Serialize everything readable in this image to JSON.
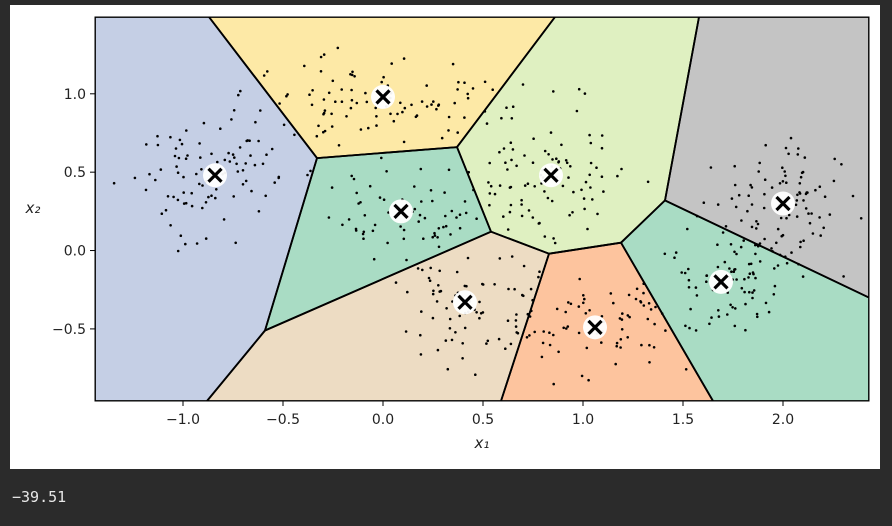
{
  "output_text": "−39.51",
  "colors": {
    "page_background": "#2b2b2b",
    "output_text": "#e8e8e8",
    "region_fills": [
      "#c5cfe5",
      "#fde9a6",
      "#a9dcc4",
      "#dff0c1",
      "#c4c4c4",
      "#eddcc3",
      "#fdc49e",
      "#a9dcc4"
    ],
    "centroid_marker": "#000000",
    "centroid_halo": "#ffffff",
    "boundary": "#000000",
    "points": "#000000"
  },
  "chart_data": {
    "type": "scatter",
    "title": "",
    "xlabel": "x₁",
    "ylabel": "x₂",
    "xlim": [
      -1.44,
      2.43
    ],
    "ylim": [
      -0.96,
      1.49
    ],
    "xticks": [
      -1.0,
      -0.5,
      0.0,
      0.5,
      1.0,
      1.5,
      2.0
    ],
    "xtick_labels": [
      "−1.0",
      "−0.5",
      "0.0",
      "0.5",
      "1.0",
      "1.5",
      "2.0"
    ],
    "yticks": [
      -0.5,
      0.0,
      0.5,
      1.0
    ],
    "ytick_labels": [
      "−0.5",
      "0.0",
      "0.5",
      "1.0"
    ],
    "grid": false,
    "legend": "none",
    "centroids": [
      {
        "x": -0.84,
        "y": 0.48
      },
      {
        "x": 0.0,
        "y": 0.98
      },
      {
        "x": 0.09,
        "y": 0.25
      },
      {
        "x": 0.84,
        "y": 0.48
      },
      {
        "x": 2.0,
        "y": 0.3
      },
      {
        "x": 0.41,
        "y": -0.33
      },
      {
        "x": 1.06,
        "y": -0.49
      },
      {
        "x": 1.69,
        "y": -0.2
      }
    ],
    "regions": [
      {
        "color_index": 0,
        "polygon": [
          [
            -1.44,
            1.49
          ],
          [
            -0.87,
            1.49
          ],
          [
            -0.33,
            0.59
          ],
          [
            -0.59,
            -0.51
          ],
          [
            -0.88,
            -0.96
          ],
          [
            -1.44,
            -0.96
          ]
        ]
      },
      {
        "color_index": 1,
        "polygon": [
          [
            -0.87,
            1.49
          ],
          [
            0.86,
            1.49
          ],
          [
            0.37,
            0.66
          ],
          [
            -0.33,
            0.59
          ]
        ]
      },
      {
        "color_index": 2,
        "polygon": [
          [
            -0.33,
            0.59
          ],
          [
            0.37,
            0.66
          ],
          [
            0.54,
            0.12
          ],
          [
            -0.59,
            -0.51
          ]
        ]
      },
      {
        "color_index": 3,
        "polygon": [
          [
            0.86,
            1.49
          ],
          [
            1.58,
            1.49
          ],
          [
            1.41,
            0.32
          ],
          [
            1.19,
            0.05
          ],
          [
            0.83,
            -0.02
          ],
          [
            0.54,
            0.12
          ],
          [
            0.37,
            0.66
          ]
        ]
      },
      {
        "color_index": 4,
        "polygon": [
          [
            1.58,
            1.49
          ],
          [
            2.43,
            1.49
          ],
          [
            2.43,
            -0.3
          ],
          [
            1.41,
            0.32
          ]
        ]
      },
      {
        "color_index": 5,
        "polygon": [
          [
            -0.59,
            -0.51
          ],
          [
            0.54,
            0.12
          ],
          [
            0.83,
            -0.02
          ],
          [
            0.59,
            -0.96
          ],
          [
            -0.88,
            -0.96
          ]
        ]
      },
      {
        "color_index": 6,
        "polygon": [
          [
            0.83,
            -0.02
          ],
          [
            1.19,
            0.05
          ],
          [
            1.65,
            -0.96
          ],
          [
            0.59,
            -0.96
          ]
        ]
      },
      {
        "color_index": 7,
        "polygon": [
          [
            1.41,
            0.32
          ],
          [
            2.43,
            -0.3
          ],
          [
            2.43,
            -0.96
          ],
          [
            1.65,
            -0.96
          ],
          [
            1.19,
            0.05
          ]
        ]
      }
    ],
    "point_clusters": [
      {
        "cx": -0.84,
        "cy": 0.48,
        "sx": 0.2,
        "sy": 0.2,
        "n": 95,
        "seed": 11
      },
      {
        "cx": 0.0,
        "cy": 0.98,
        "sx": 0.28,
        "sy": 0.13,
        "n": 95,
        "seed": 23
      },
      {
        "cx": 0.09,
        "cy": 0.25,
        "sx": 0.17,
        "sy": 0.14,
        "n": 60,
        "seed": 37
      },
      {
        "cx": 0.84,
        "cy": 0.48,
        "sx": 0.2,
        "sy": 0.19,
        "n": 95,
        "seed": 41
      },
      {
        "cx": 2.0,
        "cy": 0.3,
        "sx": 0.18,
        "sy": 0.17,
        "n": 95,
        "seed": 53
      },
      {
        "cx": 0.41,
        "cy": -0.33,
        "sx": 0.17,
        "sy": 0.17,
        "n": 70,
        "seed": 67
      },
      {
        "cx": 1.06,
        "cy": -0.49,
        "sx": 0.22,
        "sy": 0.15,
        "n": 80,
        "seed": 79
      },
      {
        "cx": 1.69,
        "cy": -0.2,
        "sx": 0.2,
        "sy": 0.14,
        "n": 80,
        "seed": 97
      }
    ]
  }
}
